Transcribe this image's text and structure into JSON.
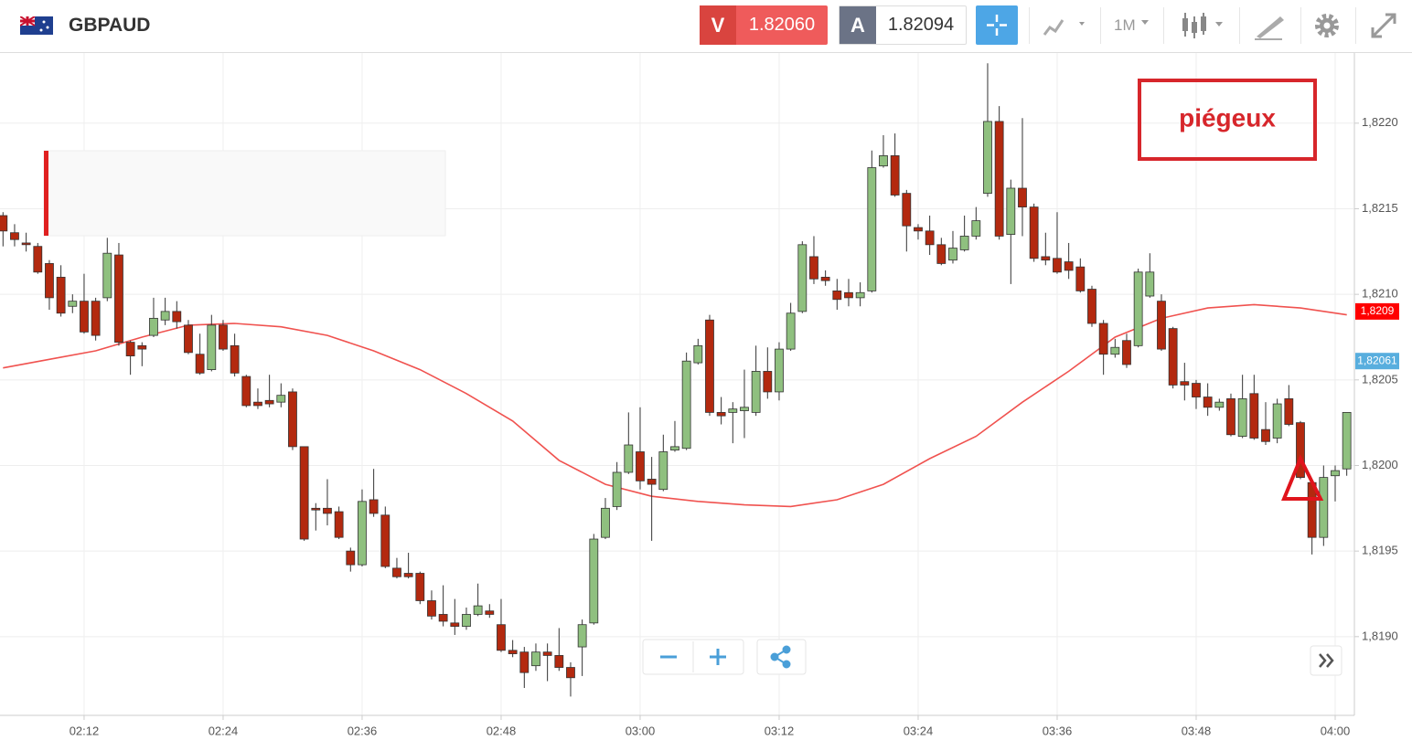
{
  "header": {
    "symbol": "GBPAUD",
    "sell_label": "V",
    "sell_price": "1.82060",
    "buy_label": "A",
    "buy_price": "1.82094",
    "timeframe": "1M"
  },
  "chart_data": {
    "type": "candlestick",
    "annotation": "piégeux",
    "up_color": "#8fc07f",
    "down_color": "#b3290f",
    "xlim": [
      124.74,
      241.58
    ],
    "xticks": [
      {
        "value": 132,
        "label": "02:12"
      },
      {
        "value": 144,
        "label": "02:24"
      },
      {
        "value": 156,
        "label": "02:36"
      },
      {
        "value": 168,
        "label": "02:48"
      },
      {
        "value": 180,
        "label": "03:00"
      },
      {
        "value": 192,
        "label": "03:12"
      },
      {
        "value": 204,
        "label": "03:24"
      },
      {
        "value": 216,
        "label": "03:36"
      },
      {
        "value": 228,
        "label": "03:48"
      },
      {
        "value": 240,
        "label": "04:00"
      }
    ],
    "ylim": [
      1.81854,
      1.82241
    ],
    "yticks": [
      {
        "value": 1.819,
        "label": "1,8190"
      },
      {
        "value": 1.8195,
        "label": "1,8195"
      },
      {
        "value": 1.82,
        "label": "1,8200"
      },
      {
        "value": 1.8205,
        "label": "1,8205"
      },
      {
        "value": 1.821,
        "label": "1,8210"
      },
      {
        "value": 1.8215,
        "label": "1,8215"
      },
      {
        "value": 1.822,
        "label": "1,8220"
      }
    ],
    "grid": true,
    "x": [
      125,
      126,
      127,
      128,
      129,
      130,
      131,
      132,
      133,
      134,
      135,
      136,
      137,
      138,
      139,
      140,
      141,
      142,
      143,
      144,
      145,
      146,
      147,
      148,
      149,
      150,
      151,
      152,
      153,
      154,
      155,
      156,
      157,
      158,
      159,
      160,
      161,
      162,
      163,
      164,
      165,
      166,
      167,
      168,
      169,
      170,
      171,
      172,
      173,
      174,
      175,
      176,
      177,
      178,
      179,
      180,
      181,
      182,
      183,
      184,
      185,
      186,
      187,
      188,
      189,
      190,
      191,
      192,
      193,
      194,
      195,
      196,
      197,
      198,
      199,
      200,
      201,
      202,
      203,
      204,
      205,
      206,
      207,
      208,
      209,
      210,
      211,
      212,
      213,
      214,
      215,
      216,
      217,
      218,
      219,
      220,
      221,
      222,
      223,
      224,
      225,
      226,
      227,
      228,
      229,
      230,
      231,
      232,
      233,
      234,
      235,
      236,
      237,
      238,
      239,
      240,
      241
    ],
    "open": [
      1.82146,
      1.82136,
      1.8213,
      1.82128,
      1.82118,
      1.8211,
      1.82093,
      1.82096,
      1.82096,
      1.82098,
      1.82123,
      1.82072,
      1.8207,
      1.82076,
      1.82085,
      1.8209,
      1.82082,
      1.82065,
      1.82056,
      1.82082,
      1.8207,
      1.82052,
      1.82037,
      1.82038,
      1.82037,
      1.82043,
      1.82011,
      1.81975,
      1.81975,
      1.81973,
      1.8195,
      1.81942,
      1.8198,
      1.81971,
      1.8194,
      1.81937,
      1.81937,
      1.81921,
      1.81913,
      1.81908,
      1.81906,
      1.81913,
      1.81915,
      1.81907,
      1.81892,
      1.81891,
      1.81883,
      1.81891,
      1.81889,
      1.81882,
      1.81894,
      1.81908,
      1.81958,
      1.81976,
      1.81996,
      1.82008,
      1.81992,
      1.81986,
      1.82009,
      1.8201,
      1.8206,
      1.82085,
      1.82031,
      1.82031,
      1.82032,
      1.82031,
      1.82055,
      1.82043,
      1.82068,
      1.8209,
      1.82122,
      1.8211,
      1.82102,
      1.82101,
      1.82098,
      1.82102,
      1.82175,
      1.82181,
      1.82159,
      1.82139,
      1.82137,
      1.82129,
      1.8212,
      1.82126,
      1.82134,
      1.82159,
      1.82201,
      1.82135,
      1.82162,
      1.82151,
      1.82122,
      1.82121,
      1.82119,
      1.82116,
      1.82103,
      1.82083,
      1.82065,
      1.82073,
      1.8207,
      1.82099,
      1.82096,
      1.8208,
      1.82049,
      1.82048,
      1.8204,
      1.82034,
      1.82039,
      1.82017,
      1.82042,
      1.82021,
      1.82016,
      1.82039,
      1.82025,
      1.8199,
      1.81958,
      1.81994,
      1.81998
    ],
    "high": [
      1.82148,
      1.82141,
      1.82136,
      1.8213,
      1.8212,
      1.82117,
      1.821,
      1.82112,
      1.82098,
      1.82133,
      1.8213,
      1.82073,
      1.82072,
      1.82098,
      1.82098,
      1.82096,
      1.82085,
      1.82077,
      1.82088,
      1.82085,
      1.82077,
      1.82053,
      1.82045,
      1.82053,
      1.82048,
      1.82045,
      1.82011,
      1.81978,
      1.81992,
      1.81976,
      1.81952,
      1.81986,
      1.81998,
      1.81976,
      1.81946,
      1.81949,
      1.81938,
      1.81927,
      1.8193,
      1.81922,
      1.81917,
      1.81931,
      1.81919,
      1.81922,
      1.81898,
      1.81894,
      1.81896,
      1.81896,
      1.81905,
      1.81885,
      1.8191,
      1.8196,
      1.81981,
      1.82002,
      1.82031,
      1.82034,
      1.82005,
      1.82018,
      1.82026,
      1.82066,
      1.82074,
      1.82088,
      1.8204,
      1.82037,
      1.82056,
      1.8207,
      1.82069,
      1.82072,
      1.82095,
      1.82131,
      1.82134,
      1.82114,
      1.82109,
      1.82109,
      1.82107,
      1.82184,
      1.82193,
      1.82194,
      1.82161,
      1.82141,
      1.82146,
      1.82133,
      1.82137,
      1.82146,
      1.82151,
      1.82235,
      1.8221,
      1.82167,
      1.82203,
      1.82153,
      1.82136,
      1.82148,
      1.8213,
      1.82121,
      1.82105,
      1.82085,
      1.82074,
      1.82077,
      1.82115,
      1.82124,
      1.821,
      1.82081,
      1.8206,
      1.8205,
      1.82048,
      1.82039,
      1.82042,
      1.82053,
      1.82053,
      1.82037,
      1.82039,
      1.82047,
      1.82026,
      1.81992,
      1.82,
      1.82,
      1.82031
    ],
    "low": [
      1.82128,
      1.82128,
      1.82125,
      1.82112,
      1.82091,
      1.82087,
      1.82089,
      1.82077,
      1.82073,
      1.82096,
      1.8207,
      1.82053,
      1.82058,
      1.82075,
      1.82082,
      1.8208,
      1.82065,
      1.82053,
      1.82055,
      1.82067,
      1.82052,
      1.82034,
      1.82033,
      1.82034,
      1.82034,
      1.82009,
      1.81956,
      1.81962,
      1.81965,
      1.81957,
      1.81938,
      1.81941,
      1.8197,
      1.8194,
      1.81934,
      1.81934,
      1.81919,
      1.8191,
      1.81906,
      1.81901,
      1.81904,
      1.81912,
      1.81911,
      1.81891,
      1.81888,
      1.8187,
      1.8188,
      1.81874,
      1.8188,
      1.81865,
      1.81877,
      1.81907,
      1.81957,
      1.81974,
      1.81995,
      1.81986,
      1.81956,
      1.81985,
      1.82008,
      1.82009,
      1.82059,
      1.82029,
      1.82024,
      1.82013,
      1.82016,
      1.82029,
      1.82039,
      1.82038,
      1.82067,
      1.82089,
      1.82106,
      1.82105,
      1.82091,
      1.82093,
      1.82093,
      1.82101,
      1.82174,
      1.82157,
      1.82125,
      1.82132,
      1.82123,
      1.82117,
      1.82118,
      1.82125,
      1.82132,
      1.82157,
      1.82132,
      1.82106,
      1.82134,
      1.82119,
      1.82117,
      1.82112,
      1.82109,
      1.82101,
      1.82081,
      1.82053,
      1.82063,
      1.82057,
      1.82069,
      1.82098,
      1.82067,
      1.82045,
      1.82038,
      1.82033,
      1.82029,
      1.82032,
      1.82017,
      1.82016,
      1.82015,
      1.82012,
      1.82013,
      1.82023,
      1.81992,
      1.81948,
      1.81953,
      1.81979,
      1.81994
    ],
    "close": [
      1.82137,
      1.82132,
      1.82129,
      1.82113,
      1.82098,
      1.82089,
      1.82096,
      1.82078,
      1.82076,
      1.82124,
      1.82072,
      1.82064,
      1.82068,
      1.82086,
      1.8209,
      1.82084,
      1.82066,
      1.82054,
      1.82082,
      1.82068,
      1.82054,
      1.82035,
      1.82035,
      1.82036,
      1.82041,
      1.82011,
      1.81957,
      1.81974,
      1.81972,
      1.81958,
      1.81942,
      1.81979,
      1.81972,
      1.81941,
      1.81935,
      1.81935,
      1.81921,
      1.81912,
      1.81909,
      1.81906,
      1.81913,
      1.81918,
      1.81913,
      1.81892,
      1.8189,
      1.81879,
      1.81891,
      1.81889,
      1.81882,
      1.81876,
      1.81907,
      1.81957,
      1.81975,
      1.81996,
      1.82012,
      1.81991,
      1.81989,
      1.82008,
      1.82011,
      1.82061,
      1.8207,
      1.82031,
      1.82029,
      1.82033,
      1.82034,
      1.82055,
      1.82043,
      1.82068,
      1.82089,
      1.82129,
      1.82109,
      1.82108,
      1.82097,
      1.82098,
      1.82101,
      1.82174,
      1.82181,
      1.82158,
      1.8214,
      1.82137,
      1.82129,
      1.82118,
      1.82127,
      1.82134,
      1.82143,
      1.82201,
      1.82134,
      1.82162,
      1.82151,
      1.82121,
      1.8212,
      1.82113,
      1.82114,
      1.82102,
      1.82083,
      1.82065,
      1.82069,
      1.82059,
      1.82113,
      1.82113,
      1.82068,
      1.82047,
      1.82047,
      1.8204,
      1.82034,
      1.82037,
      1.82018,
      1.82039,
      1.82016,
      1.82014,
      1.82036,
      1.82024,
      1.81993,
      1.81958,
      1.81993,
      1.81997,
      1.82031
    ],
    "moving_average": {
      "color": "#f0524f",
      "x": [
        125,
        129,
        133,
        137,
        141,
        145,
        149,
        153,
        157,
        161,
        165,
        169,
        173,
        177,
        181,
        185,
        189,
        193,
        197,
        201,
        205,
        209,
        213,
        217,
        221,
        225,
        229,
        233,
        237,
        241
      ],
      "values": [
        1.82057,
        1.82062,
        1.82067,
        1.82075,
        1.82082,
        1.82083,
        1.82081,
        1.82076,
        1.82067,
        1.82056,
        1.82042,
        1.82026,
        1.82003,
        1.81989,
        1.81982,
        1.81979,
        1.81977,
        1.81976,
        1.8198,
        1.81989,
        1.82004,
        1.82017,
        1.82037,
        1.82055,
        1.82075,
        1.82086,
        1.82092,
        1.82094,
        1.82092,
        1.82088
      ]
    },
    "price_labels": [
      {
        "value": 1.8209,
        "label": "1,8209",
        "color": "#ff0000"
      },
      {
        "value": 1.82061,
        "label": "1,82061",
        "color": "#58aede"
      }
    ]
  }
}
